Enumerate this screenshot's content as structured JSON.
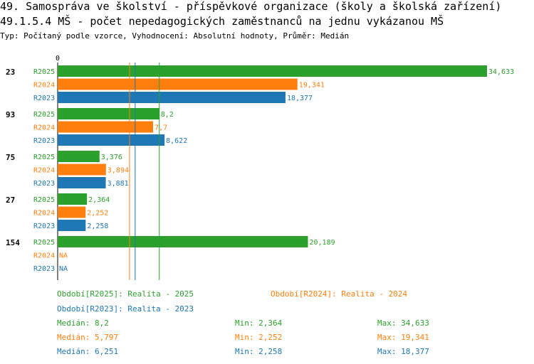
{
  "title_line1": "49. Samospráva ve školství - příspěvkové organizace (školy a školská zařízení)",
  "title_line2": "49.1.5.4 MŠ - počet nepedagogických zaměstnanců na jednu vykázanou MŠ",
  "subtitle": "Typ: Počítaný podle vzorce, Vyhodnocení: Absolutní hodnoty, Průměr: Medián",
  "colors": {
    "R2025": "#2ca02c",
    "R2024": "#ff7f0e",
    "R2023": "#1f77b4"
  },
  "chart_data": {
    "type": "bar",
    "orientation": "horizontal",
    "axis_zero_label": "0",
    "categories": [
      "23",
      "93",
      "75",
      "27",
      "154"
    ],
    "series": [
      {
        "name": "R2025",
        "values": [
          34.633,
          8.2,
          3.376,
          2.364,
          20.189
        ],
        "labels": [
          "34,633",
          "8,2",
          "3,376",
          "2,364",
          "20,189"
        ]
      },
      {
        "name": "R2024",
        "values": [
          19.341,
          7.7,
          3.894,
          2.252,
          null
        ],
        "labels": [
          "19,341",
          "7,7",
          "3,894",
          "2,252",
          "NA"
        ]
      },
      {
        "name": "R2023",
        "values": [
          18.377,
          8.622,
          3.881,
          2.258,
          null
        ],
        "labels": [
          "18,377",
          "8,622",
          "3,881",
          "2,258",
          "NA"
        ]
      }
    ],
    "xlim": [
      0,
      34.633
    ],
    "median_lines": {
      "R2025": 8.2,
      "R2024": 5.797,
      "R2023": 6.251
    }
  },
  "legend": {
    "r2025": "Období[R2025]: Realita - 2025",
    "r2024": "Období[R2024]: Realita - 2024",
    "r2023": "Období[R2023]: Realita - 2023"
  },
  "stats": {
    "r2025": {
      "median": "Medián: 8,2",
      "min": "Min: 2,364",
      "max": "Max: 34,633"
    },
    "r2024": {
      "median": "Medián: 5,797",
      "min": "Min: 2,252",
      "max": "Max: 19,341"
    },
    "r2023": {
      "median": "Medián: 6,251",
      "min": "Min: 2,258",
      "max": "Max: 18,377"
    }
  }
}
